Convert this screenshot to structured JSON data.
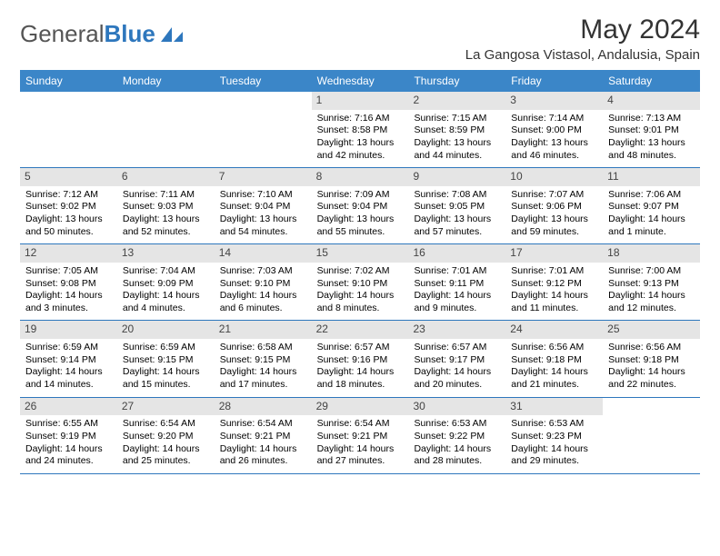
{
  "logo": {
    "text1": "General",
    "text2": "Blue"
  },
  "title": "May 2024",
  "location": "La Gangosa Vistasol, Andalusia, Spain",
  "header_color": "#3b86c8",
  "border_color": "#2e77bd",
  "daynum_bg": "#e5e5e5",
  "day_names": [
    "Sunday",
    "Monday",
    "Tuesday",
    "Wednesday",
    "Thursday",
    "Friday",
    "Saturday"
  ],
  "weeks": [
    [
      null,
      null,
      null,
      {
        "n": "1",
        "sr": "7:16 AM",
        "ss": "8:58 PM",
        "dl": "13 hours and 42 minutes."
      },
      {
        "n": "2",
        "sr": "7:15 AM",
        "ss": "8:59 PM",
        "dl": "13 hours and 44 minutes."
      },
      {
        "n": "3",
        "sr": "7:14 AM",
        "ss": "9:00 PM",
        "dl": "13 hours and 46 minutes."
      },
      {
        "n": "4",
        "sr": "7:13 AM",
        "ss": "9:01 PM",
        "dl": "13 hours and 48 minutes."
      }
    ],
    [
      {
        "n": "5",
        "sr": "7:12 AM",
        "ss": "9:02 PM",
        "dl": "13 hours and 50 minutes."
      },
      {
        "n": "6",
        "sr": "7:11 AM",
        "ss": "9:03 PM",
        "dl": "13 hours and 52 minutes."
      },
      {
        "n": "7",
        "sr": "7:10 AM",
        "ss": "9:04 PM",
        "dl": "13 hours and 54 minutes."
      },
      {
        "n": "8",
        "sr": "7:09 AM",
        "ss": "9:04 PM",
        "dl": "13 hours and 55 minutes."
      },
      {
        "n": "9",
        "sr": "7:08 AM",
        "ss": "9:05 PM",
        "dl": "13 hours and 57 minutes."
      },
      {
        "n": "10",
        "sr": "7:07 AM",
        "ss": "9:06 PM",
        "dl": "13 hours and 59 minutes."
      },
      {
        "n": "11",
        "sr": "7:06 AM",
        "ss": "9:07 PM",
        "dl": "14 hours and 1 minute."
      }
    ],
    [
      {
        "n": "12",
        "sr": "7:05 AM",
        "ss": "9:08 PM",
        "dl": "14 hours and 3 minutes."
      },
      {
        "n": "13",
        "sr": "7:04 AM",
        "ss": "9:09 PM",
        "dl": "14 hours and 4 minutes."
      },
      {
        "n": "14",
        "sr": "7:03 AM",
        "ss": "9:10 PM",
        "dl": "14 hours and 6 minutes."
      },
      {
        "n": "15",
        "sr": "7:02 AM",
        "ss": "9:10 PM",
        "dl": "14 hours and 8 minutes."
      },
      {
        "n": "16",
        "sr": "7:01 AM",
        "ss": "9:11 PM",
        "dl": "14 hours and 9 minutes."
      },
      {
        "n": "17",
        "sr": "7:01 AM",
        "ss": "9:12 PM",
        "dl": "14 hours and 11 minutes."
      },
      {
        "n": "18",
        "sr": "7:00 AM",
        "ss": "9:13 PM",
        "dl": "14 hours and 12 minutes."
      }
    ],
    [
      {
        "n": "19",
        "sr": "6:59 AM",
        "ss": "9:14 PM",
        "dl": "14 hours and 14 minutes."
      },
      {
        "n": "20",
        "sr": "6:59 AM",
        "ss": "9:15 PM",
        "dl": "14 hours and 15 minutes."
      },
      {
        "n": "21",
        "sr": "6:58 AM",
        "ss": "9:15 PM",
        "dl": "14 hours and 17 minutes."
      },
      {
        "n": "22",
        "sr": "6:57 AM",
        "ss": "9:16 PM",
        "dl": "14 hours and 18 minutes."
      },
      {
        "n": "23",
        "sr": "6:57 AM",
        "ss": "9:17 PM",
        "dl": "14 hours and 20 minutes."
      },
      {
        "n": "24",
        "sr": "6:56 AM",
        "ss": "9:18 PM",
        "dl": "14 hours and 21 minutes."
      },
      {
        "n": "25",
        "sr": "6:56 AM",
        "ss": "9:18 PM",
        "dl": "14 hours and 22 minutes."
      }
    ],
    [
      {
        "n": "26",
        "sr": "6:55 AM",
        "ss": "9:19 PM",
        "dl": "14 hours and 24 minutes."
      },
      {
        "n": "27",
        "sr": "6:54 AM",
        "ss": "9:20 PM",
        "dl": "14 hours and 25 minutes."
      },
      {
        "n": "28",
        "sr": "6:54 AM",
        "ss": "9:21 PM",
        "dl": "14 hours and 26 minutes."
      },
      {
        "n": "29",
        "sr": "6:54 AM",
        "ss": "9:21 PM",
        "dl": "14 hours and 27 minutes."
      },
      {
        "n": "30",
        "sr": "6:53 AM",
        "ss": "9:22 PM",
        "dl": "14 hours and 28 minutes."
      },
      {
        "n": "31",
        "sr": "6:53 AM",
        "ss": "9:23 PM",
        "dl": "14 hours and 29 minutes."
      },
      null
    ]
  ],
  "labels": {
    "sunrise": "Sunrise:",
    "sunset": "Sunset:",
    "daylight": "Daylight:"
  }
}
